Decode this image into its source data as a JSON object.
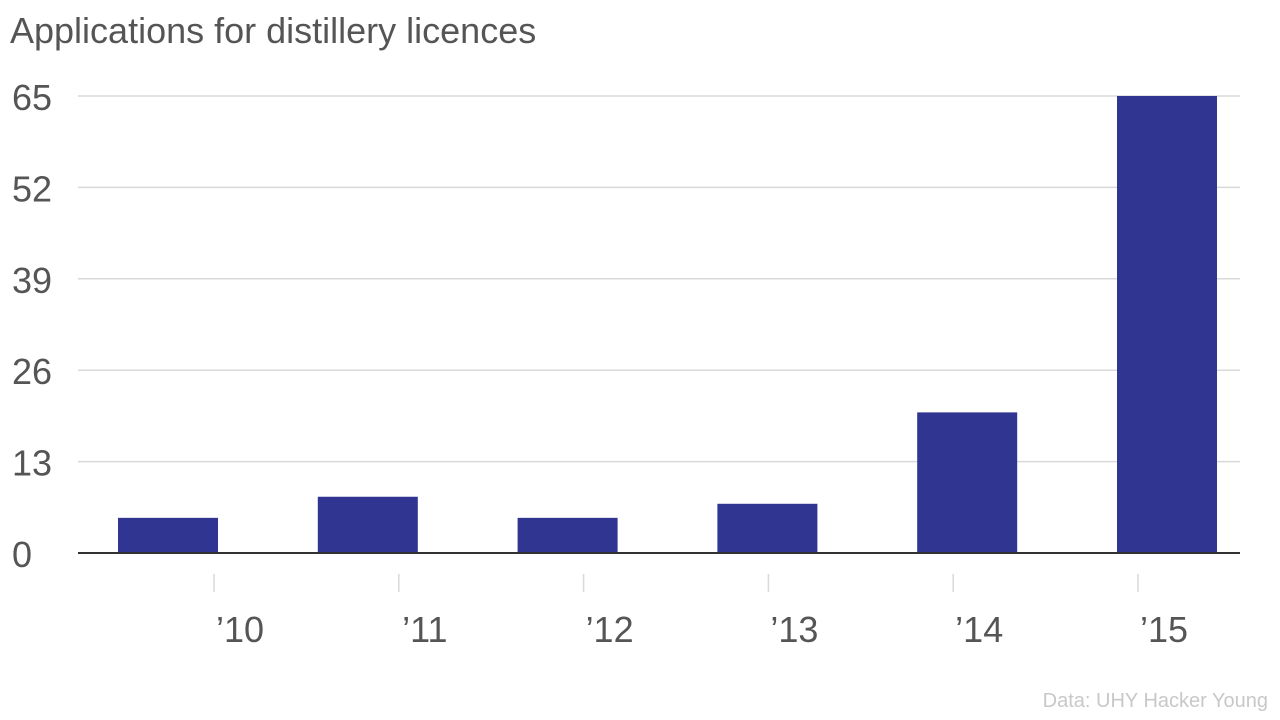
{
  "title": "Applications for distillery licences",
  "source": "Data: UHY Hacker Young",
  "colors": {
    "bar": "#303592",
    "grid": "#d9d9d9",
    "axis": "#333333",
    "text": "#555555",
    "source": "#c8c8c8"
  },
  "chart_data": {
    "type": "bar",
    "title": "Applications for distillery licences",
    "categories": [
      "’10",
      "’11",
      "’12",
      "’13",
      "’14",
      "’15"
    ],
    "values": [
      5,
      8,
      5,
      7,
      20,
      65
    ],
    "ylim": [
      0,
      65
    ],
    "yticks": [
      0,
      13,
      26,
      39,
      52,
      65
    ],
    "xlabel": "",
    "ylabel": "",
    "grid": true,
    "legend": "none"
  }
}
